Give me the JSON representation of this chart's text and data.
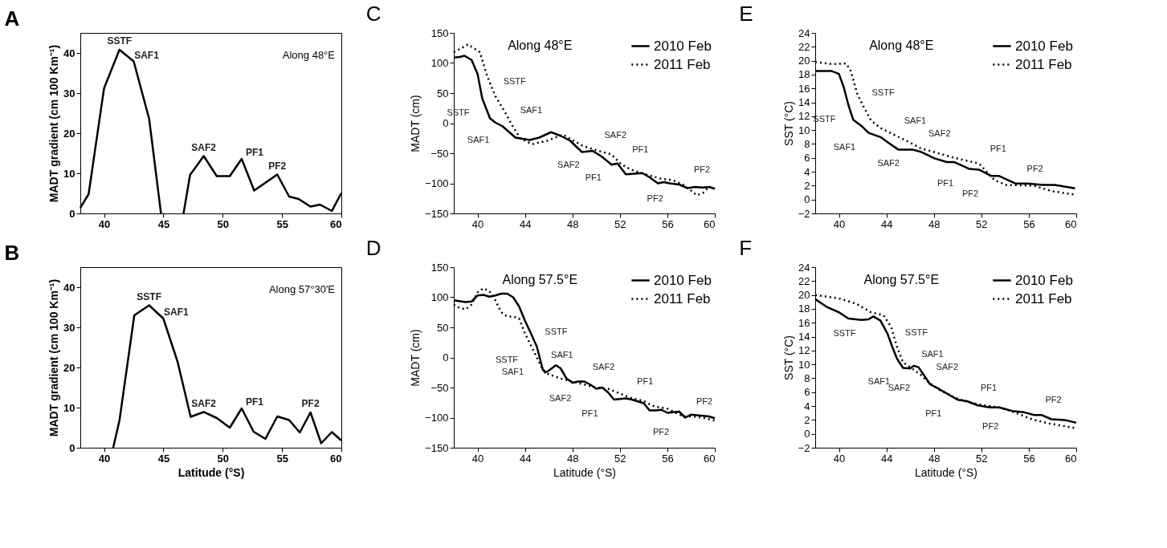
{
  "chart_data": [
    {
      "type": "line",
      "title": "A",
      "subtitle": "Along 48°E",
      "ylabel": "MADT gradient (cm 100 Km⁻¹)",
      "xlim": [
        38,
        60
      ],
      "xticks": [
        40,
        45,
        50,
        55,
        60
      ],
      "ylim": [
        0,
        45
      ],
      "yticks": [
        0,
        10,
        20,
        30,
        40
      ],
      "series": [
        {
          "color": "#000000",
          "line_style": "solid",
          "x": [
            38,
            38.7,
            40,
            41.3,
            42.5,
            43.8,
            44.8,
            45.7,
            46.7,
            47.25,
            48.4,
            49.5,
            50.6,
            51.6,
            52.65,
            54.6,
            55.6,
            56.4,
            57.4,
            58.2,
            59.2,
            60
          ],
          "values": [
            1.4,
            4.8,
            31.2,
            40.8,
            37.9,
            23.6,
            0,
            null,
            0,
            9.6,
            14.3,
            9.3,
            9.3,
            13.6,
            5.7,
            9.7,
            4.2,
            3.6,
            1.7,
            2.2,
            0.6,
            5.1
          ]
        }
      ],
      "annotations": [
        {
          "text": "SSTF",
          "x": 41.3,
          "y": 40.8
        },
        {
          "text": "SAF1",
          "x": 42.5,
          "y": 37.9
        },
        {
          "text": "SAF2",
          "x": 48.4,
          "y": 14.3
        },
        {
          "text": "PF1",
          "x": 51.6,
          "y": 13.6
        },
        {
          "text": "PF2",
          "x": 54.6,
          "y": 9.7
        }
      ]
    },
    {
      "type": "line",
      "title": "C",
      "subtitle": "Along 48°E",
      "ylabel": "MADT (cm)",
      "xlim": [
        38,
        60
      ],
      "xticks": [
        40,
        44,
        48,
        52,
        56,
        60
      ],
      "ylim": [
        -150,
        150
      ],
      "yticks": [
        -150,
        -100,
        -50,
        0,
        50,
        100,
        150
      ],
      "legend": "top right",
      "series": [
        {
          "name": "2010 Feb",
          "color": "#000000",
          "line_style": "solid",
          "x": [
            38,
            38.5,
            38.9,
            39.5,
            40,
            40.4,
            41.05,
            41.5,
            42.1,
            42.5,
            43.2,
            44.4,
            45.2,
            46.2,
            47,
            47.8,
            48.8,
            49.7,
            50.5,
            51.3,
            51.8,
            52.5,
            53.2,
            53.9,
            54.5,
            55.2,
            55.7,
            56.2,
            57,
            57.7,
            58.3,
            59,
            59.5,
            60
          ],
          "values": [
            109,
            110,
            112,
            105,
            82,
            41,
            8,
            1,
            -5,
            -12,
            -24,
            -28,
            -24,
            -15,
            -21,
            -29,
            -48,
            -46,
            -56,
            -69,
            -67,
            -85,
            -84,
            -83,
            -90,
            -100,
            -98,
            -100,
            -102,
            -108,
            -106,
            -107,
            -106,
            -109
          ]
        },
        {
          "name": "2011 Feb",
          "color": "#000000",
          "line_style": "dotted",
          "x": [
            38,
            38.3,
            39.2,
            40.2,
            40.8,
            41.5,
            42.3,
            42.9,
            43.6,
            44.6,
            45.9,
            47.2,
            48.8,
            50,
            51.3,
            52.1,
            52.9,
            54,
            55.4,
            56.5,
            57.3,
            58,
            58.5,
            59,
            59.5,
            60
          ],
          "values": [
            118,
            121,
            131,
            118,
            79,
            45,
            19,
            -3,
            -25,
            -35,
            -29,
            -19,
            -37,
            -45,
            -52,
            -68,
            -77,
            -84,
            -92,
            -95,
            -102,
            -112,
            -120,
            -116,
            -106,
            -108
          ]
        }
      ],
      "annotations": [
        {
          "text": "SSTF",
          "x": 41.5,
          "y": 45
        },
        {
          "text": "SSTF",
          "x": 40.4,
          "y": 41
        },
        {
          "text": "SAF1",
          "x": 42.9,
          "y": -3
        },
        {
          "text": "SAF1",
          "x": 42.1,
          "y": -5
        },
        {
          "text": "SAF2",
          "x": 50,
          "y": -45
        },
        {
          "text": "SAF2",
          "x": 49.7,
          "y": -46
        },
        {
          "text": "PF1",
          "x": 52.1,
          "y": -68
        },
        {
          "text": "PF1",
          "x": 51.8,
          "y": -67
        },
        {
          "text": "PF2",
          "x": 57.3,
          "y": -102
        },
        {
          "text": "PF2",
          "x": 57,
          "y": -102
        }
      ]
    },
    {
      "type": "line",
      "title": "E",
      "subtitle": "Along 48°E",
      "ylabel": "SST (°C)",
      "xlim": [
        38,
        60
      ],
      "xticks": [
        40,
        44,
        48,
        52,
        56,
        60
      ],
      "ylim": [
        -2,
        24
      ],
      "yticks": [
        -2,
        0,
        2,
        4,
        6,
        8,
        10,
        12,
        14,
        16,
        18,
        20,
        22,
        24
      ],
      "legend": "top right",
      "series": [
        {
          "name": "2010 Feb",
          "color": "#000000",
          "line_style": "solid",
          "x": [
            38,
            39.4,
            40,
            40.4,
            40.8,
            41.2,
            41.9,
            42.5,
            43.5,
            44.15,
            45,
            46.2,
            46.85,
            48.1,
            49.1,
            49.7,
            51,
            51.8,
            52.85,
            53.5,
            54.9,
            55.9,
            57.2,
            58.2,
            59.9
          ],
          "values": [
            18.5,
            18.5,
            18.1,
            16.2,
            13.6,
            11.5,
            10.6,
            9.6,
            9.0,
            8.2,
            7.2,
            7.2,
            6.9,
            5.9,
            5.4,
            5.4,
            4.4,
            4.3,
            3.4,
            3.4,
            2.3,
            2.3,
            2.1,
            2.1,
            1.6
          ]
        },
        {
          "name": "2011 Feb",
          "color": "#000000",
          "line_style": "dotted",
          "x": [
            38,
            39.4,
            40.6,
            41,
            41.55,
            42.1,
            42.7,
            43.5,
            44.8,
            46,
            46.85,
            48.1,
            49.5,
            51,
            51.8,
            53.1,
            54.1,
            56.4,
            58,
            59.9
          ],
          "values": [
            19.8,
            19.5,
            19.6,
            18.5,
            15.2,
            13.3,
            11.4,
            10.3,
            9.2,
            8.2,
            7.4,
            6.8,
            6.1,
            5.5,
            5.2,
            2.8,
            2.1,
            2.0,
            1.2,
            0.7
          ]
        }
      ],
      "annotations": [
        {
          "text": "SSTF",
          "x": 42.1,
          "y": 13.3
        },
        {
          "text": "SSTF",
          "x": 40.8,
          "y": 13.6
        },
        {
          "text": "SAF1",
          "x": 44.8,
          "y": 9.2
        },
        {
          "text": "SAF1",
          "x": 42.5,
          "y": 9.6
        },
        {
          "text": "SAF2",
          "x": 46.85,
          "y": 7.4
        },
        {
          "text": "SAF2",
          "x": 46.2,
          "y": 7.2
        },
        {
          "text": "PF1",
          "x": 51.8,
          "y": 5.2
        },
        {
          "text": "PF1",
          "x": 51,
          "y": 4.4
        },
        {
          "text": "PF2",
          "x": 54.9,
          "y": 2.3
        },
        {
          "text": "PF2",
          "x": 53.1,
          "y": 2.8
        }
      ]
    },
    {
      "type": "line",
      "title": "B",
      "subtitle": "Along 57°30′E",
      "xlabel": "Latitude (°S)",
      "ylabel": "MADT gradient (cm 100 Km⁻¹)",
      "xlim": [
        38,
        60
      ],
      "xticks": [
        40,
        45,
        50,
        55,
        60
      ],
      "ylim": [
        0,
        45
      ],
      "yticks": [
        0,
        10,
        20,
        30,
        40
      ],
      "series": [
        {
          "color": "#000000",
          "line_style": "solid",
          "x": [
            40.77,
            41.3,
            42.55,
            43.8,
            45,
            46.2,
            47.3,
            48.4,
            49.5,
            50.6,
            51.6,
            52.6,
            53.6,
            54.6,
            55.6,
            56.5,
            57.4,
            58.3,
            59.2,
            60
          ],
          "values": [
            0,
            6.8,
            33,
            35.5,
            32.2,
            21.4,
            7.7,
            8.9,
            7.4,
            5.0,
            9.8,
            4.0,
            2.2,
            7.8,
            6.9,
            3.8,
            8.8,
            1.1,
            3.9,
            1.8
          ]
        }
      ],
      "annotations": [
        {
          "text": "SSTF",
          "x": 43.8,
          "y": 35.5
        },
        {
          "text": "SAF1",
          "x": 45,
          "y": 32.2
        },
        {
          "text": "SAF2",
          "x": 48.4,
          "y": 8.9
        },
        {
          "text": "PF1",
          "x": 51.6,
          "y": 9.8
        },
        {
          "text": "PF2",
          "x": 57.4,
          "y": 8.8
        }
      ]
    },
    {
      "type": "line",
      "title": "D",
      "subtitle": "Along 57.5°E",
      "xlabel": "Latitude (°S)",
      "ylabel": "MADT (cm)",
      "xlim": [
        38,
        60
      ],
      "xticks": [
        40,
        44,
        48,
        52,
        56,
        60
      ],
      "ylim": [
        -150,
        150
      ],
      "yticks": [
        -150,
        -100,
        -50,
        0,
        50,
        100,
        150
      ],
      "legend": "top right",
      "series": [
        {
          "name": "2010 Feb",
          "color": "#000000",
          "line_style": "solid",
          "x": [
            38,
            39,
            39.5,
            40,
            40.5,
            41,
            41.5,
            42,
            42.5,
            43,
            43.5,
            44,
            44.5,
            45,
            45.5,
            45.7,
            46,
            46.6,
            47,
            47.5,
            48,
            48.5,
            49,
            49.5,
            50,
            50.5,
            51,
            51.5,
            52,
            52.5,
            53,
            54,
            54.5,
            55,
            55.5,
            56,
            57,
            57.5,
            58,
            59,
            59.5,
            60
          ],
          "values": [
            95,
            92,
            93,
            103,
            104,
            101,
            103,
            106,
            106,
            100,
            85,
            61,
            40,
            18,
            -20,
            -25,
            -22,
            -13,
            -18,
            -35,
            -42,
            -40,
            -40,
            -45,
            -52,
            -50,
            -58,
            -70,
            -69,
            -68,
            -70,
            -76,
            -88,
            -88,
            -87,
            -92,
            -90,
            -100,
            -95,
            -97,
            -98,
            -101
          ]
        },
        {
          "name": "2011 Feb",
          "color": "#000000",
          "line_style": "dotted",
          "x": [
            38,
            38.5,
            39,
            39.5,
            40,
            40.5,
            41,
            41.5,
            42,
            42.5,
            43,
            43.5,
            44,
            44.5,
            45,
            45.5,
            46,
            47,
            48,
            49,
            50,
            51,
            52,
            53,
            54,
            54.5,
            55,
            56,
            57,
            57.5,
            58,
            59,
            60
          ],
          "values": [
            88,
            82,
            80,
            88,
            108,
            115,
            110,
            95,
            75,
            68,
            68,
            65,
            40,
            20,
            0,
            -20,
            -28,
            -35,
            -40,
            -45,
            -50,
            -52,
            -60,
            -68,
            -72,
            -78,
            -82,
            -85,
            -95,
            -98,
            -98,
            -100,
            -105
          ]
        }
      ],
      "annotations": [
        {
          "text": "SSTF",
          "x": 45,
          "y": 18
        },
        {
          "text": "SSTF",
          "x": 44.5,
          "y": 20
        },
        {
          "text": "SAF1",
          "x": 45.5,
          "y": -20
        },
        {
          "text": "SAF1",
          "x": 45,
          "y": 0
        },
        {
          "text": "SAF2",
          "x": 49,
          "y": -40
        },
        {
          "text": "SAF2",
          "x": 49,
          "y": -45
        },
        {
          "text": "PF1",
          "x": 52.5,
          "y": -64
        },
        {
          "text": "PF1",
          "x": 51.5,
          "y": -70
        },
        {
          "text": "PF2",
          "x": 57.5,
          "y": -98
        },
        {
          "text": "PF2",
          "x": 57.5,
          "y": -100
        }
      ]
    },
    {
      "type": "line",
      "title": "F",
      "subtitle": "Along 57.5°E",
      "xlabel": "Latitude (°S)",
      "ylabel": "SST (°C)",
      "xlim": [
        38,
        60
      ],
      "xticks": [
        40,
        44,
        48,
        52,
        56,
        60
      ],
      "ylim": [
        -2,
        24
      ],
      "yticks": [
        -2,
        0,
        2,
        4,
        6,
        8,
        10,
        12,
        14,
        16,
        18,
        20,
        22,
        24
      ],
      "legend": "top right",
      "series": [
        {
          "name": "2010 Feb",
          "color": "#000000",
          "line_style": "solid",
          "x": [
            38,
            38.95,
            40,
            40.8,
            41.9,
            42.5,
            42.9,
            43.5,
            44.1,
            44.5,
            44.9,
            45.4,
            46,
            46.3,
            46.7,
            47.1,
            47.7,
            48.3,
            49.1,
            50,
            50.8,
            51.7,
            52.7,
            53.5,
            54.6,
            55.6,
            56.45,
            57.1,
            57.9,
            59,
            60
          ],
          "values": [
            19.4,
            18.3,
            17.5,
            16.6,
            16.4,
            16.5,
            16.9,
            16.3,
            14.4,
            12.5,
            10.8,
            9.5,
            9.4,
            9.8,
            9.6,
            8.6,
            7.1,
            6.6,
            5.8,
            4.9,
            4.7,
            4.1,
            3.8,
            3.8,
            3.3,
            3.1,
            2.7,
            2.7,
            2.1,
            2.0,
            1.6
          ]
        },
        {
          "name": "2011 Feb",
          "color": "#000000",
          "line_style": "dotted",
          "x": [
            38,
            40,
            41.5,
            42.7,
            43.75,
            44.4,
            44.9,
            45.4,
            46.25,
            46.9,
            47.5,
            48.5,
            49.8,
            51,
            52.3,
            53.5,
            54.8,
            56.25,
            57.7,
            60
          ],
          "values": [
            20.0,
            19.5,
            18.7,
            17.5,
            17.1,
            15.4,
            12.5,
            10.3,
            9.3,
            8.5,
            7.5,
            6.3,
            5.2,
            4.5,
            4.1,
            3.8,
            3.1,
            2.1,
            1.5,
            0.8
          ]
        }
      ],
      "annotations": [
        {
          "text": "SSTF",
          "x": 44.9,
          "y": 12.5
        },
        {
          "text": "SSTF",
          "x": 42.5,
          "y": 16.5
        },
        {
          "text": "SAF1",
          "x": 46.25,
          "y": 9.3
        },
        {
          "text": "SAF1",
          "x": 45.4,
          "y": 9.5
        },
        {
          "text": "SAF2",
          "x": 47.5,
          "y": 7.5
        },
        {
          "text": "SAF2",
          "x": 47.1,
          "y": 8.6
        },
        {
          "text": "PF1",
          "x": 51,
          "y": 4.5
        },
        {
          "text": "PF1",
          "x": 50,
          "y": 4.9
        },
        {
          "text": "PF2",
          "x": 56.45,
          "y": 2.7
        },
        {
          "text": "PF2",
          "x": 54.8,
          "y": 3.1
        }
      ]
    }
  ]
}
